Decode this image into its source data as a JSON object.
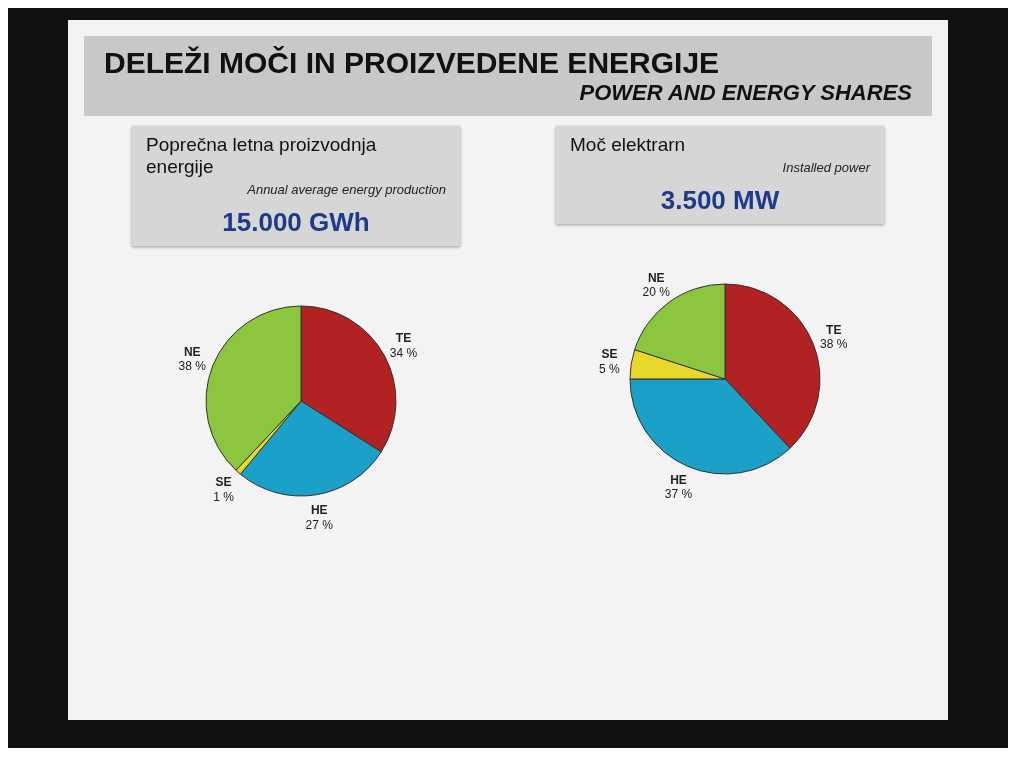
{
  "chart_data": [
    {
      "type": "other",
      "title": "DELEŽI MOČI IN PROIZVEDENE ENERGIJE",
      "subtitle": "POWER AND ENERGY SHARES"
    },
    {
      "type": "pie",
      "title": "Poprečna letna proizvodnja energije",
      "subtitle": "Annual average energy production",
      "annotations": [
        "15.000 GWh"
      ],
      "categories": [
        "TE",
        "HE",
        "SE",
        "NE"
      ],
      "values": [
        34,
        27,
        1,
        38
      ],
      "value_labels": [
        "34 %",
        "27 %",
        "1 %",
        "38 %"
      ],
      "colors": [
        "#b22222",
        "#1ba0c8",
        "#e8d82a",
        "#8cc63f"
      ]
    },
    {
      "type": "pie",
      "title": "Moč elektrarn",
      "subtitle": "Installed power",
      "annotations": [
        "3.500 MW"
      ],
      "categories": [
        "TE",
        "HE",
        "SE",
        "NE"
      ],
      "values": [
        38,
        37,
        5,
        20
      ],
      "value_labels": [
        "38 %",
        "37 %",
        "5 %",
        "20 %"
      ],
      "colors": [
        "#b22222",
        "#1ba0c8",
        "#e8d82a",
        "#8cc63f"
      ]
    }
  ]
}
